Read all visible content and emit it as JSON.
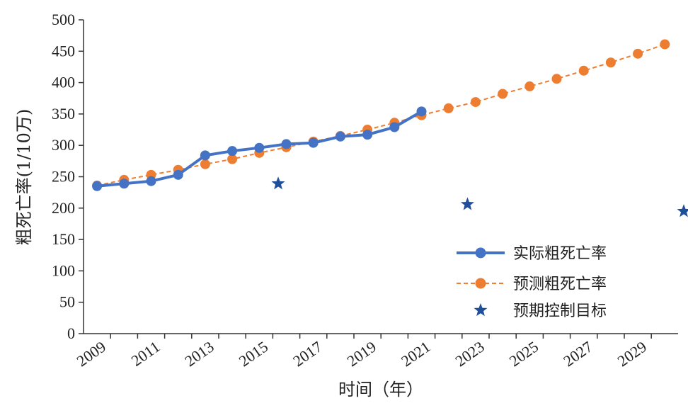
{
  "chart_data": {
    "type": "line",
    "title": "",
    "xlabel": "时间（年）",
    "ylabel": "粗死亡率(1/10万)",
    "ylim": [
      0,
      500
    ],
    "y_ticks": [
      0,
      50,
      100,
      150,
      200,
      250,
      300,
      350,
      400,
      450,
      500
    ],
    "x_ticks": [
      "2009",
      "2011",
      "2013",
      "2015",
      "2017",
      "2019",
      "2021",
      "2023",
      "2025",
      "2027",
      "2029"
    ],
    "xlim": [
      2009,
      2031
    ],
    "grid": false,
    "legend_position": "right",
    "series": [
      {
        "name": "实际粗死亡率",
        "style": "solid",
        "color": "#4472c4",
        "x": [
          2009,
          2010,
          2011,
          2012,
          2013,
          2014,
          2015,
          2016,
          2017,
          2018,
          2019,
          2020,
          2021
        ],
        "values": [
          235,
          239,
          243,
          253,
          284,
          291,
          296,
          302,
          304,
          314,
          317,
          329,
          354
        ]
      },
      {
        "name": "预测粗死亡率",
        "style": "dashed",
        "color": "#ed7d31",
        "x": [
          2009,
          2010,
          2011,
          2012,
          2013,
          2014,
          2015,
          2016,
          2017,
          2018,
          2019,
          2020,
          2021,
          2022,
          2023,
          2024,
          2025,
          2026,
          2027,
          2028,
          2029,
          2030
        ],
        "values": [
          236,
          245,
          253,
          261,
          270,
          278,
          288,
          297,
          306,
          315,
          325,
          336,
          348,
          359,
          369,
          382,
          394,
          406,
          419,
          432,
          446,
          461
        ]
      },
      {
        "name": "预期控制目标",
        "style": "marker-star",
        "color": "#1f4e9a",
        "x": [
          2015.7,
          2022.7,
          2030.7
        ],
        "values": [
          239,
          206,
          195
        ]
      }
    ]
  }
}
